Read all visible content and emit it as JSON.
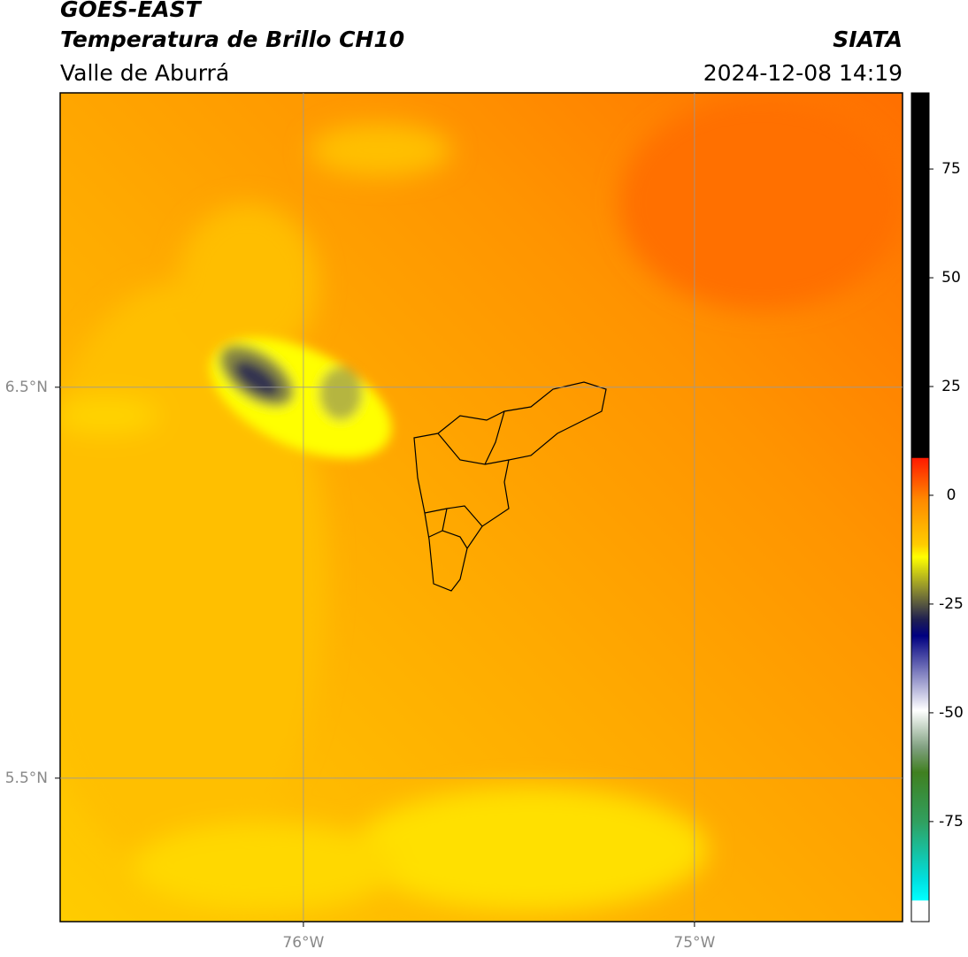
{
  "header": {
    "title": "GOES-EAST",
    "subtitle": "Temperatura de Brillo CH10",
    "region": "Valle de Aburrá",
    "source": "SIATA",
    "datetime": "2024-12-08 14:19"
  },
  "map": {
    "xlim": [
      -76.622,
      -74.468
    ],
    "ylim": [
      5.133,
      7.253
    ],
    "xticks": [
      {
        "value": -76,
        "label": "76°W"
      },
      {
        "value": -75,
        "label": "75°W"
      }
    ],
    "yticks": [
      {
        "value": 6.5,
        "label": "6.5°N"
      },
      {
        "value": 5.5,
        "label": "5.5°N"
      }
    ],
    "grid": true
  },
  "colorbar": {
    "lim": [
      -98,
      92.5
    ],
    "ticks": [
      75,
      50,
      25,
      0,
      -25,
      -50,
      -75
    ]
  }
}
